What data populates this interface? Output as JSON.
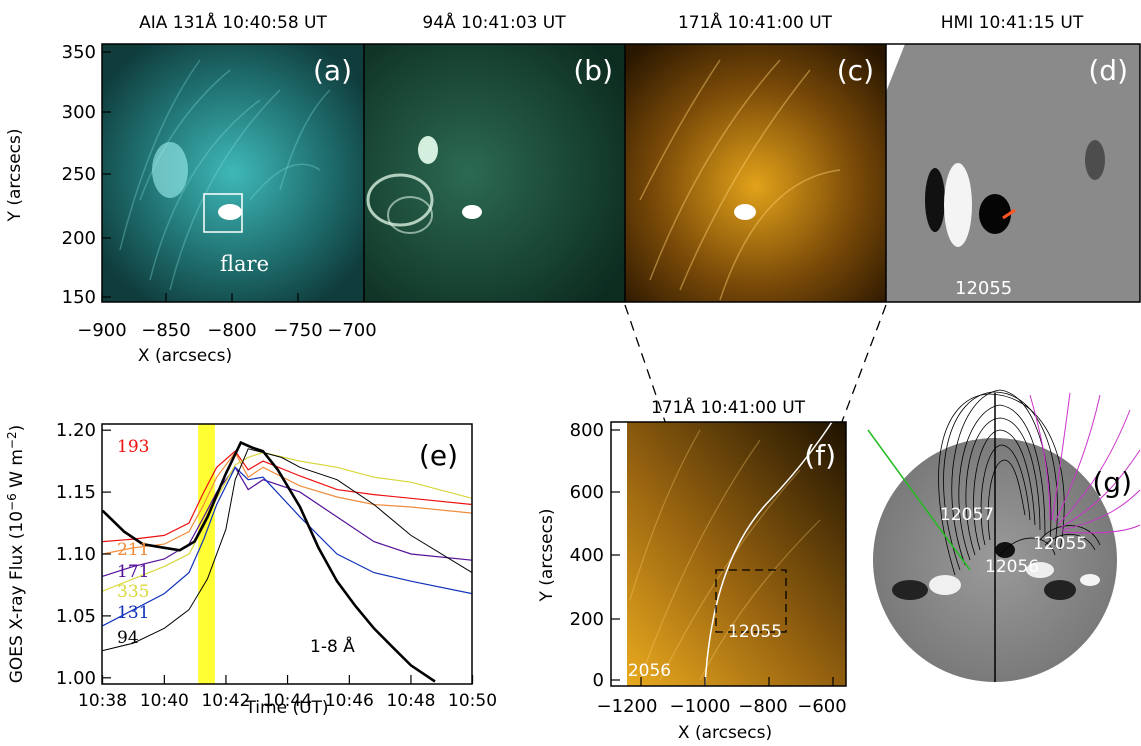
{
  "panels": {
    "a": {
      "label": "(a)",
      "title": "AIA  131Å  10:40:58  UT",
      "annotation": "flare"
    },
    "b": {
      "label": "(b)",
      "title": "94Å  10:41:03  UT"
    },
    "c": {
      "label": "(c)",
      "title": "171Å  10:41:00  UT"
    },
    "d": {
      "label": "(d)",
      "title": "HMI  10:41:15  UT",
      "region": "12055"
    },
    "e": {
      "label": "(e)",
      "band": "1-8  Å"
    },
    "f": {
      "label": "(f)",
      "title": "171Å  10:41:00  UT",
      "region_a": "12055",
      "region_b": "12056"
    },
    "g": {
      "label": "(g)",
      "regions": [
        "12057",
        "12055",
        "12056"
      ]
    }
  },
  "top_axes": {
    "xlabel": "X (arcsecs)",
    "ylabel": "Y (arcsecs)",
    "x_ticks": [
      "−900",
      "−850",
      "−800",
      "−750",
      "−700"
    ],
    "y_ticks": [
      "350",
      "300",
      "250",
      "200",
      "150"
    ]
  },
  "f_axes": {
    "xlabel": "X (arcsecs)",
    "ylabel": "Y (arcsecs)",
    "x_ticks": [
      "−1200",
      "−1000",
      "−800",
      "−600"
    ],
    "y_ticks": [
      "800",
      "600",
      "400",
      "200",
      "0"
    ]
  },
  "chart_data": {
    "type": "line",
    "xlabel": "Time (UT)",
    "ylabel": "GOES X-ray Flux (10",
    "ylabel_exp": "−6",
    "ylabel_unit": " W m",
    "ylabel_unit_exp": "−2",
    "ylabel_close": ")",
    "xlim": [
      10.633,
      10.833
    ],
    "ylim": [
      0.995,
      1.205
    ],
    "x_tick_labels": [
      "10:38",
      "10:40",
      "10:42",
      "10:44",
      "10:46",
      "10:48",
      "10:50"
    ],
    "x_ticks_hours": [
      10.6333,
      10.6667,
      10.7,
      10.7333,
      10.7667,
      10.8,
      10.8333
    ],
    "y_ticks": [
      1.0,
      1.05,
      1.1,
      1.15,
      1.2
    ],
    "y_tick_labels": [
      "1.00",
      "1.05",
      "1.10",
      "1.15",
      "1.20"
    ],
    "highlight": {
      "start": 10.685,
      "end": 10.694,
      "color": "#ffff33"
    },
    "series": [
      {
        "name": "193",
        "color": "#ee1111",
        "width": 1.2,
        "x": [
          10.6333,
          10.65,
          10.6667,
          10.68,
          10.688,
          10.695,
          10.705,
          10.712,
          10.72,
          10.74,
          10.76,
          10.78,
          10.8,
          10.8333
        ],
        "y": [
          1.11,
          1.112,
          1.115,
          1.125,
          1.15,
          1.17,
          1.183,
          1.168,
          1.175,
          1.163,
          1.152,
          1.148,
          1.145,
          1.14
        ]
      },
      {
        "name": "211",
        "color": "#f08c3c",
        "width": 1.2,
        "x": [
          10.6333,
          10.65,
          10.6667,
          10.68,
          10.688,
          10.695,
          10.705,
          10.712,
          10.72,
          10.74,
          10.76,
          10.78,
          10.8,
          10.8333
        ],
        "y": [
          1.1,
          1.105,
          1.108,
          1.118,
          1.14,
          1.162,
          1.182,
          1.162,
          1.17,
          1.155,
          1.146,
          1.14,
          1.138,
          1.133
        ]
      },
      {
        "name": "171",
        "color": "#551199",
        "width": 1.2,
        "x": [
          10.6333,
          10.65,
          10.6667,
          10.68,
          10.688,
          10.695,
          10.705,
          10.712,
          10.72,
          10.74,
          10.76,
          10.78,
          10.8,
          10.8333
        ],
        "y": [
          1.082,
          1.09,
          1.096,
          1.108,
          1.13,
          1.15,
          1.17,
          1.152,
          1.16,
          1.15,
          1.13,
          1.11,
          1.1,
          1.095
        ]
      },
      {
        "name": "335",
        "color": "#d8d83c",
        "width": 1.2,
        "x": [
          10.6333,
          10.65,
          10.6667,
          10.68,
          10.688,
          10.695,
          10.705,
          10.712,
          10.72,
          10.74,
          10.76,
          10.78,
          10.8,
          10.8333
        ],
        "y": [
          1.07,
          1.08,
          1.09,
          1.1,
          1.122,
          1.145,
          1.172,
          1.178,
          1.182,
          1.175,
          1.17,
          1.162,
          1.158,
          1.145
        ]
      },
      {
        "name": "131",
        "color": "#1133bb",
        "width": 1.2,
        "x": [
          10.6333,
          10.65,
          10.6667,
          10.68,
          10.688,
          10.695,
          10.705,
          10.712,
          10.72,
          10.74,
          10.76,
          10.78,
          10.8,
          10.8333
        ],
        "y": [
          1.042,
          1.055,
          1.068,
          1.085,
          1.112,
          1.14,
          1.17,
          1.16,
          1.162,
          1.13,
          1.1,
          1.085,
          1.078,
          1.068
        ]
      },
      {
        "name": "94",
        "color": "#000000",
        "width": 1.0,
        "x": [
          10.6333,
          10.65,
          10.6667,
          10.68,
          10.69,
          10.7,
          10.705,
          10.712,
          10.72,
          10.73,
          10.74,
          10.76,
          10.78,
          10.8,
          10.8333
        ],
        "y": [
          1.022,
          1.028,
          1.04,
          1.055,
          1.08,
          1.12,
          1.16,
          1.185,
          1.182,
          1.178,
          1.17,
          1.16,
          1.14,
          1.115,
          1.085
        ]
      },
      {
        "name": "1-8  Å",
        "color": "#000000",
        "width": 2.6,
        "x": [
          10.6333,
          10.645,
          10.655,
          10.6667,
          10.675,
          10.683,
          10.69,
          10.7,
          10.708,
          10.714,
          10.72,
          10.728,
          10.74,
          10.75,
          10.76,
          10.77,
          10.78,
          10.79,
          10.8,
          10.81,
          10.813
        ],
        "y": [
          1.135,
          1.118,
          1.108,
          1.105,
          1.103,
          1.11,
          1.13,
          1.165,
          1.19,
          1.186,
          1.183,
          1.168,
          1.138,
          1.105,
          1.078,
          1.058,
          1.04,
          1.025,
          1.01,
          1.0,
          0.997
        ]
      }
    ]
  }
}
